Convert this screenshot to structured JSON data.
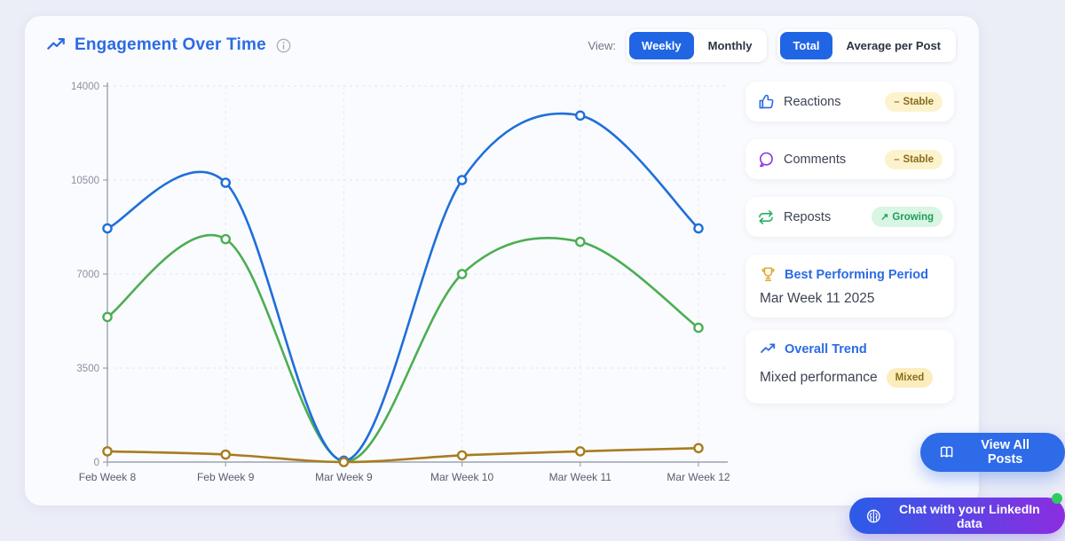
{
  "header": {
    "title": "Engagement Over Time",
    "view_label": "View:",
    "period_toggle": {
      "options": [
        "Weekly",
        "Monthly"
      ],
      "active": "Weekly"
    },
    "metric_toggle": {
      "options": [
        "Total",
        "Average per Post"
      ],
      "active": "Total"
    }
  },
  "legend": {
    "items": [
      {
        "label": "Reactions",
        "icon": "thumbs-up",
        "badge": {
          "icon": "–",
          "label": "Stable",
          "type": "stable"
        }
      },
      {
        "label": "Comments",
        "icon": "chat-bubble",
        "badge": {
          "icon": "–",
          "label": "Stable",
          "type": "stable"
        }
      },
      {
        "label": "Reposts",
        "icon": "repeat",
        "badge": {
          "icon": "↗",
          "label": "Growing",
          "type": "growing"
        }
      }
    ]
  },
  "best_period": {
    "title": "Best Performing Period",
    "value": "Mar Week 11 2025"
  },
  "overall_trend": {
    "title": "Overall Trend",
    "value": "Mixed performance",
    "badge": "Mixed"
  },
  "actions": {
    "view_all_posts": "View All Posts",
    "chat": "Chat with your LinkedIn data"
  },
  "colors": {
    "accent_blue": "#2066e4",
    "title_blue": "#2b6be4",
    "axis": "#9aa1b0",
    "grid": "#e4e7f0"
  },
  "chart_data": {
    "type": "line",
    "title": "Engagement Over Time",
    "x": [
      "Feb Week 8",
      "Feb Week 9",
      "Mar Week 9",
      "Mar Week 10",
      "Mar Week 11",
      "Mar Week 12"
    ],
    "series": [
      {
        "name": "Reactions",
        "color": "#1e6fd9",
        "values": [
          8700,
          10400,
          50,
          10500,
          12900,
          8700
        ]
      },
      {
        "name": "Comments",
        "color": "#4cae52",
        "values": [
          5400,
          8300,
          30,
          7000,
          8200,
          5000
        ]
      },
      {
        "name": "Reposts",
        "color": "#a87c1e",
        "values": [
          400,
          280,
          0,
          250,
          400,
          520
        ]
      }
    ],
    "ylim": [
      0,
      14000
    ],
    "yticks": [
      0,
      3500,
      7000,
      10500,
      14000
    ],
    "grid": true,
    "legend_position": "right"
  }
}
